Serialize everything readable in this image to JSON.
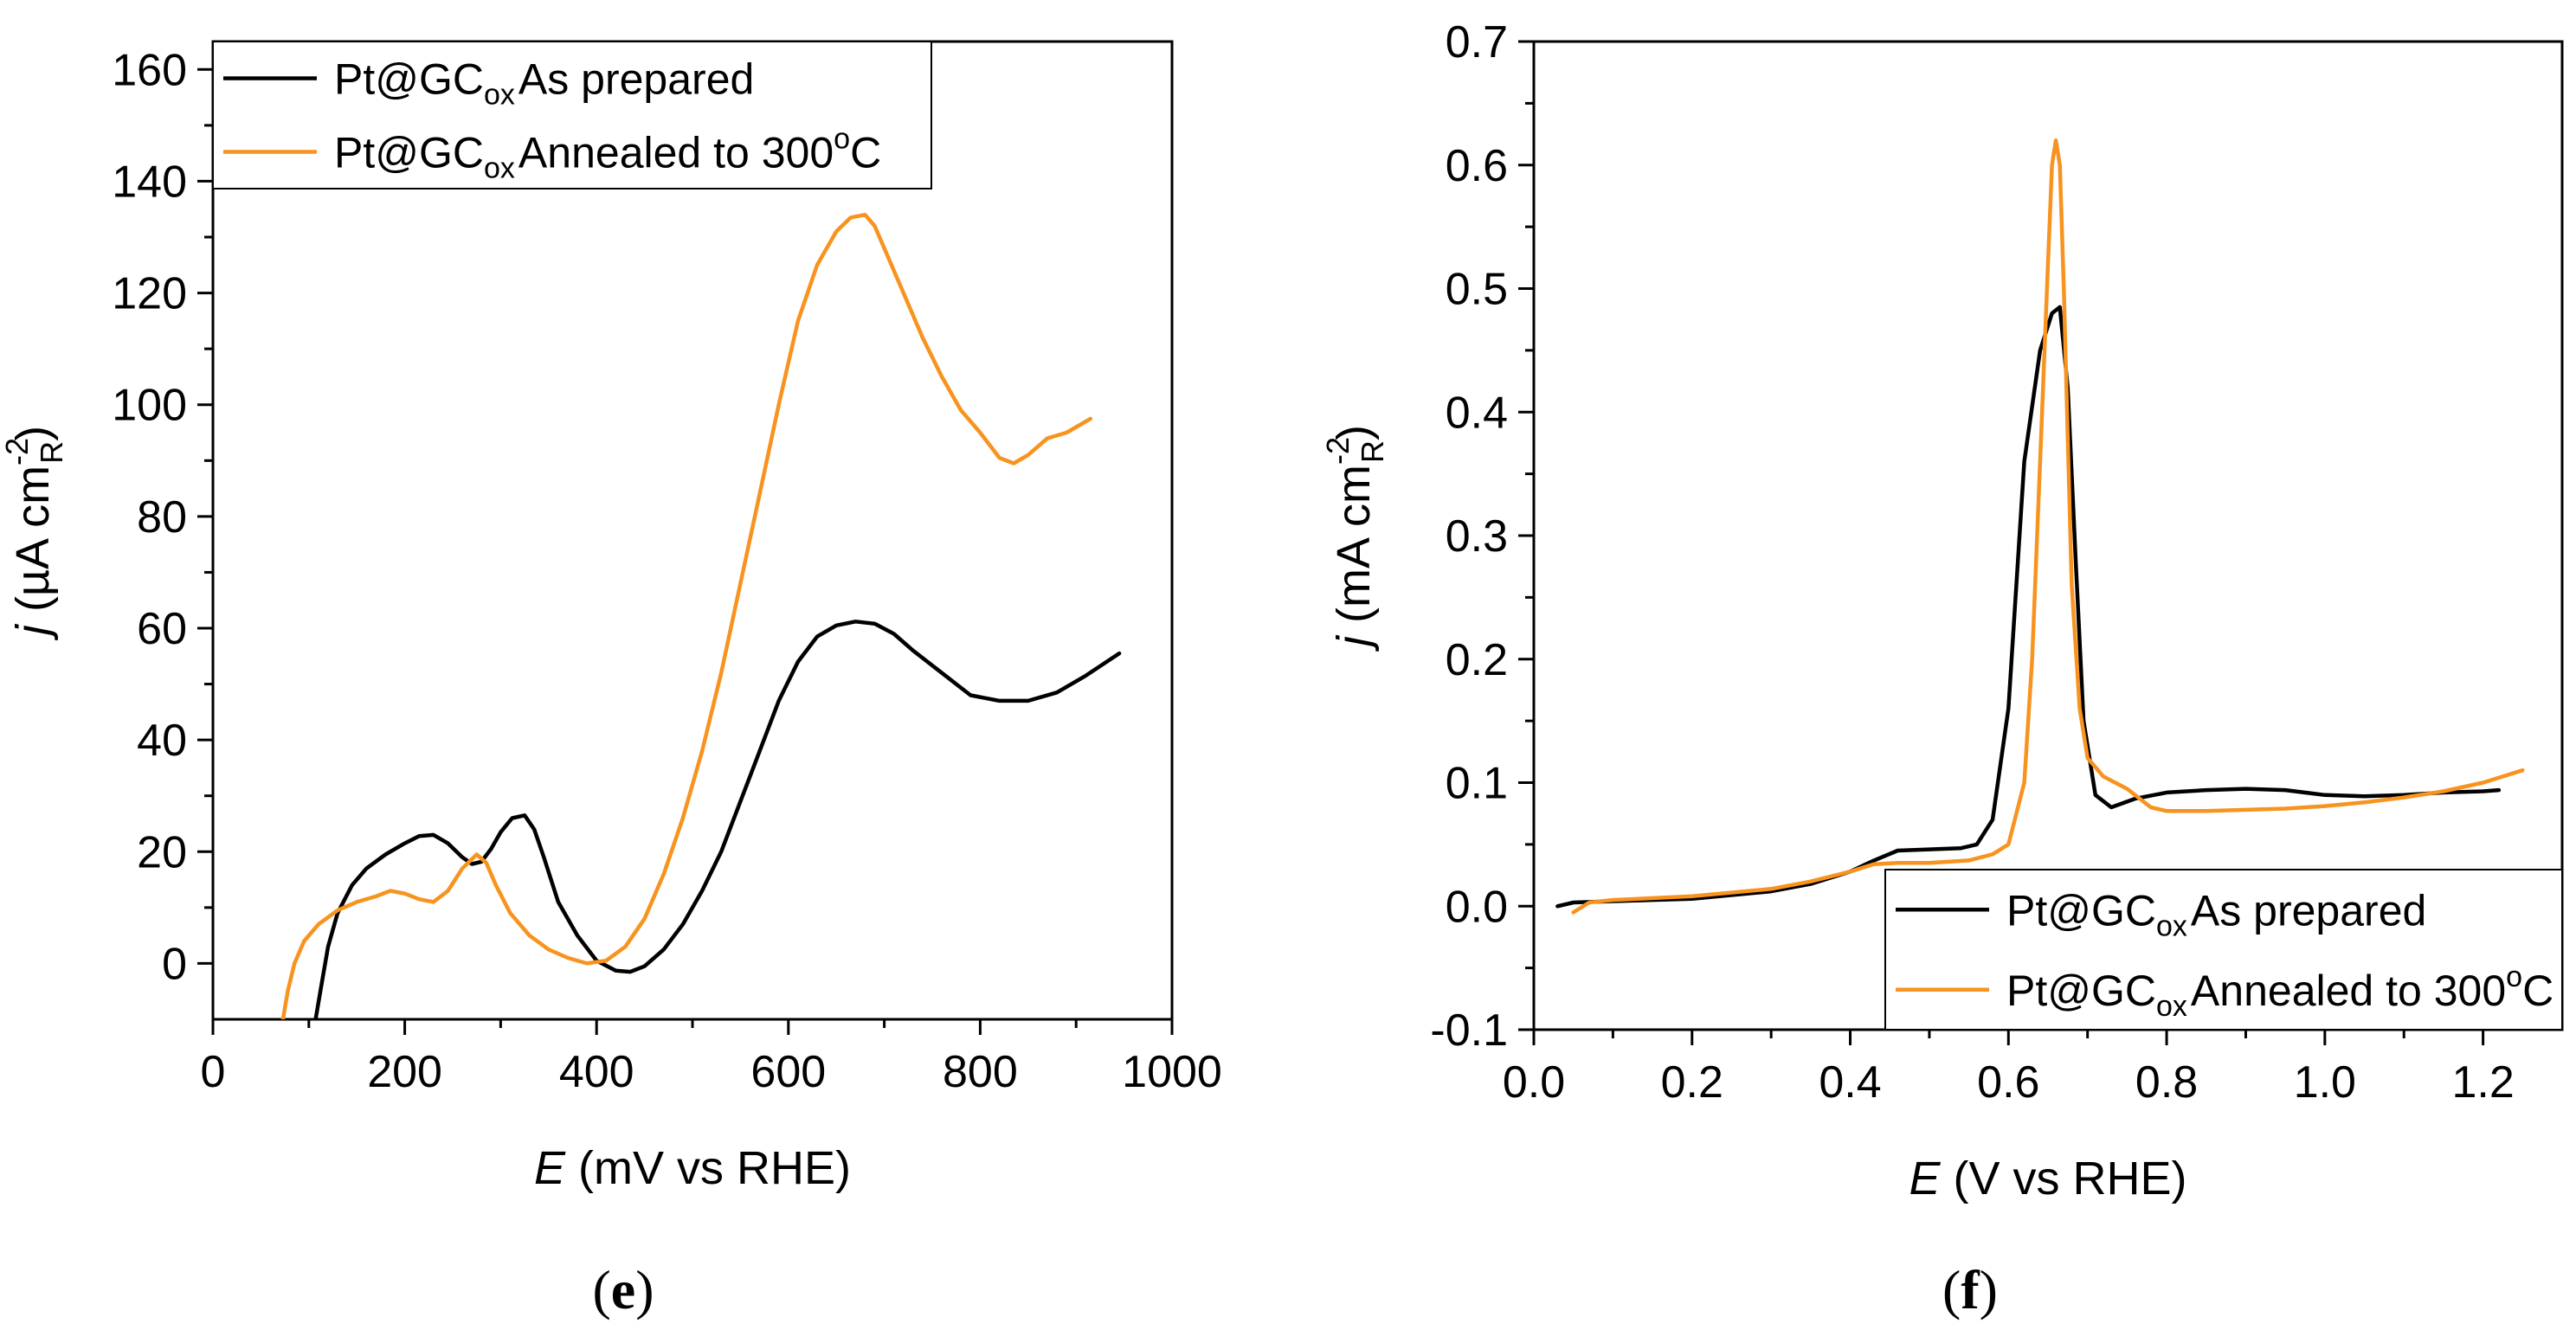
{
  "chart_data": [
    {
      "panel_label": "e",
      "type": "line",
      "title": "",
      "xlabel": {
        "var": "E",
        "rest": " (mV vs RHE)"
      },
      "ylabel": {
        "var": "j",
        "rest": " (µA cm",
        "sup": "-2",
        "sub": "R",
        "end": ")"
      },
      "xlim": [
        0,
        1000
      ],
      "ylim": [
        -10,
        165
      ],
      "xticks": [
        0,
        200,
        400,
        600,
        800,
        1000
      ],
      "xtick_labels": [
        "0",
        "200",
        "400",
        "600",
        "800",
        "1000"
      ],
      "yticks": [
        0,
        20,
        40,
        60,
        80,
        100,
        120,
        140,
        160
      ],
      "ytick_labels": [
        "0",
        "20",
        "40",
        "60",
        "80",
        "100",
        "120",
        "140",
        "160"
      ],
      "legend_position": "top-left",
      "series": [
        {
          "name": "Pt@GCox As prepared",
          "legend": {
            "prefix": "Pt@GC",
            "sub": "ox",
            "suffix": "As prepared"
          },
          "color": "#000000",
          "x": [
            107,
            112,
            120,
            130,
            145,
            160,
            180,
            200,
            215,
            230,
            245,
            260,
            270,
            280,
            290,
            300,
            312,
            325,
            335,
            345,
            360,
            380,
            400,
            420,
            435,
            450,
            470,
            490,
            510,
            530,
            550,
            570,
            590,
            610,
            630,
            650,
            670,
            690,
            710,
            730,
            760,
            790,
            820,
            850,
            880,
            910,
            945
          ],
          "y": [
            -10,
            -5,
            3,
            9,
            14,
            17,
            19.5,
            21.5,
            22.8,
            23,
            21.5,
            19,
            17.8,
            18.2,
            20.5,
            23.5,
            26,
            26.5,
            24,
            19,
            11,
            5,
            0.5,
            -1.3,
            -1.5,
            -0.5,
            2.5,
            7,
            13,
            20,
            29,
            38,
            47,
            54,
            58.5,
            60.5,
            61.2,
            60.8,
            59,
            56,
            52,
            48,
            47,
            47,
            48.5,
            51.5,
            55.5
          ]
        },
        {
          "name": "Pt@GCox Annealed to 300oC",
          "legend": {
            "prefix": "Pt@GC",
            "sub": "ox",
            "suffix": "Annealed to 300",
            "sup": "o",
            "end": "C"
          },
          "color": "#F7931E",
          "x": [
            73,
            78,
            85,
            95,
            110,
            130,
            150,
            170,
            185,
            200,
            215,
            230,
            245,
            260,
            275,
            285,
            295,
            310,
            330,
            350,
            370,
            390,
            410,
            430,
            450,
            470,
            490,
            510,
            530,
            550,
            570,
            590,
            610,
            630,
            650,
            665,
            680,
            690,
            700,
            720,
            740,
            760,
            780,
            800,
            820,
            835,
            850,
            870,
            890,
            915
          ],
          "y": [
            -10,
            -5,
            0,
            4,
            7,
            9.5,
            11,
            12,
            13,
            12.5,
            11.5,
            11,
            13,
            17,
            19.5,
            18,
            14,
            9,
            5,
            2.5,
            1,
            0,
            0.5,
            3,
            8,
            16,
            26,
            38,
            52,
            68,
            84,
            100,
            115,
            125,
            131,
            133.5,
            134,
            132,
            128,
            120,
            112,
            105,
            99,
            95,
            90.5,
            89.5,
            91,
            94,
            95,
            97.5
          ]
        }
      ]
    },
    {
      "panel_label": "f",
      "type": "line",
      "title": "",
      "xlabel": {
        "var": "E",
        "rest": " (V  vs RHE)"
      },
      "ylabel": {
        "var": "j",
        "rest": " (mA cm",
        "sup": "-2",
        "sub": "R",
        "end": ")"
      },
      "xlim": [
        0.0,
        1.3
      ],
      "ylim": [
        -0.1,
        0.7
      ],
      "xticks": [
        0.0,
        0.2,
        0.4,
        0.6,
        0.8,
        1.0,
        1.2
      ],
      "xtick_labels": [
        "0.0",
        "0.2",
        "0.4",
        "0.6",
        "0.8",
        "1.0",
        "1.2"
      ],
      "yticks": [
        -0.1,
        0.0,
        0.1,
        0.2,
        0.3,
        0.4,
        0.5,
        0.6,
        0.7
      ],
      "ytick_labels": [
        "-0.1",
        "0.0",
        "0.1",
        "0.2",
        "0.3",
        "0.4",
        "0.5",
        "0.6",
        "0.7"
      ],
      "legend_position": "bottom-right",
      "series": [
        {
          "name": "Pt@GCox As prepared",
          "legend": {
            "prefix": "Pt@GC",
            "sub": "ox",
            "suffix": "As prepared"
          },
          "color": "#000000",
          "x": [
            0.03,
            0.05,
            0.1,
            0.2,
            0.3,
            0.35,
            0.4,
            0.43,
            0.46,
            0.5,
            0.54,
            0.56,
            0.58,
            0.6,
            0.62,
            0.64,
            0.655,
            0.665,
            0.675,
            0.685,
            0.695,
            0.71,
            0.73,
            0.76,
            0.8,
            0.85,
            0.9,
            0.95,
            1.0,
            1.05,
            1.1,
            1.15,
            1.2,
            1.22
          ],
          "y": [
            0.0,
            0.003,
            0.004,
            0.006,
            0.012,
            0.018,
            0.028,
            0.037,
            0.045,
            0.046,
            0.047,
            0.05,
            0.07,
            0.16,
            0.36,
            0.45,
            0.48,
            0.485,
            0.42,
            0.28,
            0.15,
            0.09,
            0.08,
            0.087,
            0.092,
            0.094,
            0.095,
            0.094,
            0.09,
            0.089,
            0.09,
            0.092,
            0.093,
            0.094
          ]
        },
        {
          "name": "Pt@GCox Annealed to 300oC",
          "legend": {
            "prefix": "Pt@GC",
            "sub": "ox",
            "suffix": "Annealed to 300",
            "sup": "o",
            "end": "C"
          },
          "color": "#F7931E",
          "x": [
            0.05,
            0.07,
            0.1,
            0.2,
            0.3,
            0.35,
            0.4,
            0.43,
            0.46,
            0.5,
            0.55,
            0.58,
            0.6,
            0.62,
            0.63,
            0.64,
            0.65,
            0.655,
            0.66,
            0.665,
            0.67,
            0.675,
            0.68,
            0.69,
            0.7,
            0.72,
            0.75,
            0.78,
            0.8,
            0.85,
            0.9,
            0.95,
            1.0,
            1.05,
            1.1,
            1.15,
            1.2,
            1.25
          ],
          "y": [
            -0.005,
            0.003,
            0.005,
            0.008,
            0.014,
            0.02,
            0.028,
            0.034,
            0.035,
            0.035,
            0.037,
            0.042,
            0.05,
            0.1,
            0.2,
            0.36,
            0.52,
            0.6,
            0.62,
            0.6,
            0.5,
            0.38,
            0.26,
            0.16,
            0.12,
            0.105,
            0.095,
            0.08,
            0.077,
            0.077,
            0.078,
            0.079,
            0.081,
            0.084,
            0.088,
            0.093,
            0.1,
            0.11
          ]
        }
      ]
    }
  ]
}
